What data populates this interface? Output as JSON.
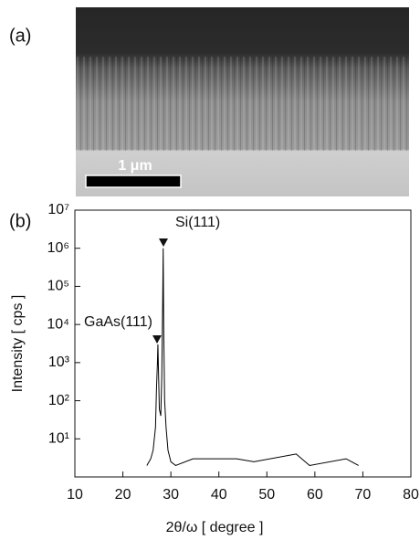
{
  "panel_a": {
    "label": "(a)",
    "scale_bar": "1 μm"
  },
  "chart_data": {
    "type": "line",
    "label": "(b)",
    "x_label": "2θ/ω [ degree ]",
    "y_label": "Intensity [ cps ]",
    "log_y": true,
    "color": "#000000",
    "annotations": [
      "Si(111)",
      "GaAs(111)"
    ],
    "x": [
      25,
      25.8,
      26.3,
      26.8,
      27.0,
      27.2,
      27.3,
      27.4,
      27.6,
      27.9,
      28.1,
      28.3,
      28.4,
      28.5,
      28.7,
      29.0,
      29.4,
      30,
      31,
      34.6,
      40,
      43.7,
      47.3,
      56.1,
      58.9,
      66.5,
      69.1
    ],
    "values": [
      2,
      3,
      5,
      20,
      200,
      1000,
      3000,
      800,
      60,
      40,
      400,
      40000,
      1000000,
      10000,
      100,
      20,
      5,
      2.5,
      2,
      3,
      3,
      3,
      2.5,
      4,
      2,
      3,
      2
    ],
    "xlim": [
      10,
      80
    ],
    "xticks": [
      10,
      20,
      30,
      40,
      50,
      60,
      70,
      80
    ],
    "ylim": [
      1,
      10000000
    ],
    "yticks": [
      {
        "value": 10,
        "label": "10¹"
      },
      {
        "value": 100,
        "label": "10²"
      },
      {
        "value": 1000,
        "label": "10³"
      },
      {
        "value": 10000,
        "label": "10⁴"
      },
      {
        "value": 100000,
        "label": "10⁵"
      },
      {
        "value": 1000000,
        "label": "10⁶"
      },
      {
        "value": 10000000,
        "label": "10⁷"
      }
    ]
  }
}
